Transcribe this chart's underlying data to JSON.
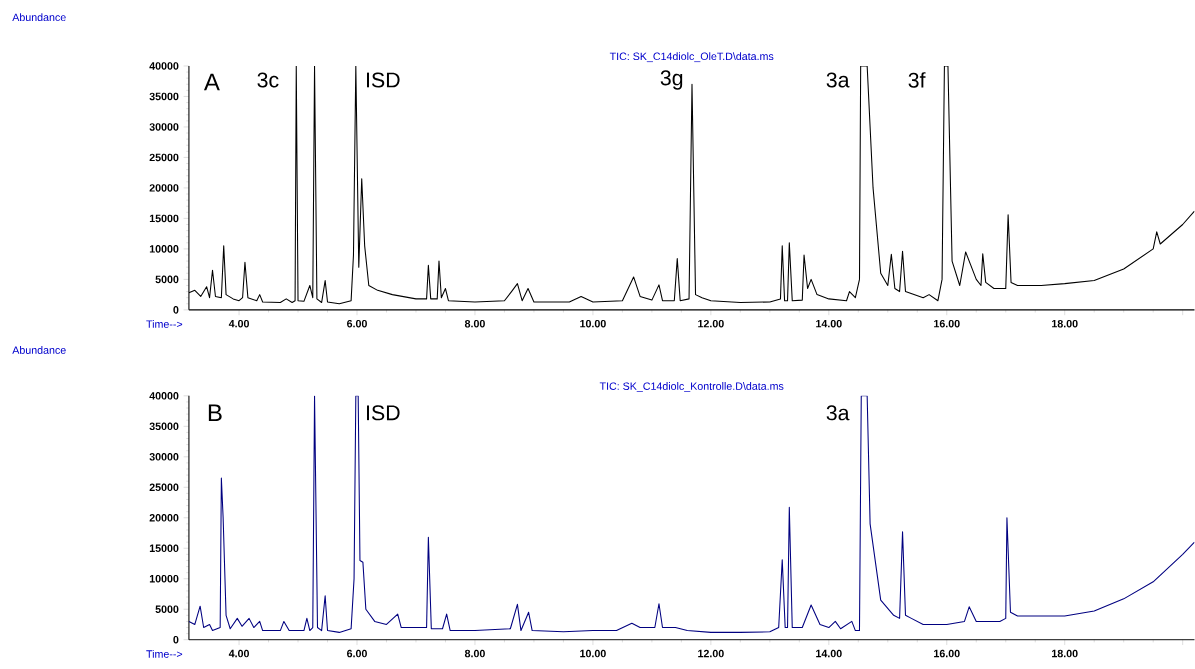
{
  "chart_data": [
    {
      "type": "line",
      "title": "TIC: SK_C14diolc_OleT.D\\data.ms",
      "xlabel": "Time-->",
      "ylabel": "Abundance",
      "xlim": [
        3.15,
        20.2
      ],
      "ylim": [
        0,
        40000
      ],
      "xticks": [
        {
          "value": 4,
          "label": "4.00"
        },
        {
          "value": 6,
          "label": "6.00"
        },
        {
          "value": 8,
          "label": "8.00"
        },
        {
          "value": 10,
          "label": "10.00"
        },
        {
          "value": 12,
          "label": "12.00"
        },
        {
          "value": 14,
          "label": "14.00"
        },
        {
          "value": 16,
          "label": "16.00"
        },
        {
          "value": 18,
          "label": "18.00"
        },
        {
          "value": 20,
          "label": null
        }
      ],
      "yticks": [
        0,
        5000,
        10000,
        15000,
        20000,
        25000,
        30000,
        35000,
        40000
      ],
      "annotations": [
        "A",
        "3c",
        "ISD",
        "3g",
        "3a",
        "3f"
      ],
      "series": [
        {
          "color": "#000000",
          "x": [
            3.15,
            3.25,
            3.35,
            3.45,
            3.5,
            3.55,
            3.6,
            3.7,
            3.74,
            3.78,
            3.9,
            4.0,
            4.06,
            4.1,
            4.15,
            4.3,
            4.35,
            4.4,
            4.7,
            4.8,
            4.9,
            4.95,
            4.97,
            5.0,
            5.1,
            5.2,
            5.25,
            5.28,
            5.32,
            5.4,
            5.46,
            5.5,
            5.7,
            5.9,
            5.94,
            5.98,
            6.03,
            6.08,
            6.13,
            6.2,
            6.35,
            6.6,
            7.0,
            7.18,
            7.21,
            7.25,
            7.36,
            7.39,
            7.43,
            7.5,
            7.55,
            8.0,
            8.5,
            8.62,
            8.72,
            8.8,
            8.9,
            9.0,
            9.6,
            9.8,
            10.0,
            10.5,
            10.69,
            10.8,
            11.0,
            11.12,
            11.18,
            11.38,
            11.43,
            11.48,
            11.63,
            11.68,
            11.74,
            11.85,
            12.0,
            12.5,
            13.0,
            13.18,
            13.21,
            13.25,
            13.3,
            13.33,
            13.38,
            13.55,
            13.58,
            13.64,
            13.7,
            13.8,
            14.0,
            14.3,
            14.35,
            14.45,
            14.52,
            14.54,
            14.65,
            14.75,
            14.88,
            15.0,
            15.06,
            15.12,
            15.2,
            15.25,
            15.3,
            15.6,
            15.7,
            15.85,
            15.92,
            15.96,
            16.02,
            16.09,
            16.22,
            16.32,
            16.4,
            16.5,
            16.58,
            16.61,
            16.66,
            16.8,
            17.0,
            17.04,
            17.09,
            17.2,
            17.6,
            18.0,
            18.5,
            19.0,
            19.5,
            19.56,
            19.62,
            20.0,
            20.2
          ],
          "values": [
            2800,
            3200,
            2200,
            3800,
            2000,
            6500,
            2200,
            2000,
            10500,
            2500,
            1800,
            1500,
            2000,
            7800,
            2000,
            1500,
            2500,
            1300,
            1200,
            1800,
            1200,
            1500,
            40000,
            1500,
            1400,
            4000,
            2000,
            40000,
            1800,
            1200,
            4800,
            1300,
            1000,
            1500,
            9000,
            40000,
            7000,
            21500,
            10500,
            4000,
            3200,
            2500,
            1800,
            1800,
            7300,
            1800,
            1800,
            8000,
            2000,
            3500,
            1500,
            1300,
            1500,
            3000,
            4300,
            1500,
            3500,
            1300,
            1300,
            2200,
            1300,
            1500,
            5400,
            2200,
            1600,
            4100,
            1500,
            1500,
            8400,
            1500,
            1800,
            37000,
            2500,
            2000,
            1500,
            1200,
            1300,
            1800,
            10500,
            1500,
            1500,
            11000,
            1500,
            1600,
            9000,
            3500,
            5000,
            2500,
            1800,
            1500,
            3000,
            2000,
            5000,
            40000,
            40000,
            20000,
            6000,
            4000,
            9100,
            3500,
            3000,
            9600,
            3000,
            2000,
            2500,
            1500,
            5000,
            40000,
            40000,
            8000,
            4000,
            9500,
            7500,
            5000,
            4000,
            9200,
            4500,
            3500,
            3500,
            15600,
            4500,
            4000,
            4000,
            4300,
            4800,
            6700,
            10000,
            12800,
            10800,
            14000,
            16200
          ]
        }
      ]
    },
    {
      "type": "line",
      "title": "TIC: SK_C14diolc_Kontrolle.D\\data.ms",
      "xlabel": "Time-->",
      "ylabel": "Abundance",
      "xlim": [
        3.15,
        20.2
      ],
      "ylim": [
        0,
        40000
      ],
      "xticks": [
        {
          "value": 4,
          "label": "4.00"
        },
        {
          "value": 6,
          "label": "6.00"
        },
        {
          "value": 8,
          "label": "8.00"
        },
        {
          "value": 10,
          "label": "10.00"
        },
        {
          "value": 12,
          "label": "12.00"
        },
        {
          "value": 14,
          "label": "14.00"
        },
        {
          "value": 16,
          "label": "16.00"
        },
        {
          "value": 18,
          "label": "18.00"
        },
        {
          "value": 20,
          "label": null
        }
      ],
      "yticks": [
        0,
        5000,
        10000,
        15000,
        20000,
        25000,
        30000,
        35000,
        40000
      ],
      "annotations": [
        "B",
        "ISD",
        "3a"
      ],
      "series": [
        {
          "color": "#000080",
          "x": [
            3.15,
            3.25,
            3.34,
            3.4,
            3.5,
            3.55,
            3.68,
            3.7,
            3.73,
            3.78,
            3.85,
            3.97,
            4.05,
            4.17,
            4.25,
            4.35,
            4.4,
            4.7,
            4.76,
            4.85,
            5.1,
            5.15,
            5.2,
            5.25,
            5.28,
            5.33,
            5.4,
            5.46,
            5.5,
            5.7,
            5.9,
            5.95,
            5.98,
            6.02,
            6.05,
            6.1,
            6.15,
            6.3,
            6.5,
            6.69,
            6.75,
            7.0,
            7.18,
            7.21,
            7.26,
            7.45,
            7.52,
            7.58,
            8.0,
            8.6,
            8.72,
            8.78,
            8.91,
            8.97,
            9.5,
            10.0,
            10.4,
            10.66,
            10.8,
            11.05,
            11.12,
            11.18,
            11.4,
            11.6,
            12.0,
            12.5,
            13.0,
            13.15,
            13.21,
            13.26,
            13.3,
            13.33,
            13.38,
            13.55,
            13.7,
            13.85,
            14.0,
            14.11,
            14.2,
            14.39,
            14.45,
            14.52,
            14.55,
            14.65,
            14.7,
            14.88,
            15.1,
            15.2,
            15.25,
            15.3,
            15.4,
            15.6,
            16.0,
            16.3,
            16.38,
            16.5,
            16.9,
            17.0,
            17.02,
            17.08,
            17.2,
            18.0,
            18.5,
            19.0,
            19.5,
            20.0,
            20.2
          ],
          "values": [
            3000,
            2500,
            5500,
            2000,
            2500,
            1500,
            2000,
            26500,
            20000,
            4000,
            1800,
            3500,
            2200,
            3500,
            2000,
            3000,
            1500,
            1500,
            3000,
            1500,
            1500,
            3500,
            1500,
            2000,
            40000,
            2000,
            1500,
            7200,
            1500,
            1200,
            1800,
            10000,
            40000,
            40000,
            13000,
            12700,
            5000,
            3000,
            2500,
            4200,
            2000,
            2000,
            2000,
            16800,
            1800,
            1800,
            4200,
            1500,
            1500,
            1800,
            5800,
            1500,
            4500,
            1500,
            1300,
            1500,
            1500,
            2700,
            2000,
            2000,
            5900,
            2000,
            2000,
            1500,
            1200,
            1200,
            1300,
            2000,
            13100,
            2000,
            2000,
            21700,
            2000,
            2000,
            5700,
            2500,
            2000,
            3000,
            1800,
            3000,
            1500,
            1500,
            40000,
            40000,
            19000,
            6500,
            4000,
            3500,
            17700,
            4000,
            3500,
            2500,
            2500,
            3000,
            5400,
            3000,
            3000,
            3500,
            20000,
            4500,
            3900,
            3900,
            4700,
            6700,
            9500,
            14000,
            16000
          ]
        }
      ]
    }
  ]
}
